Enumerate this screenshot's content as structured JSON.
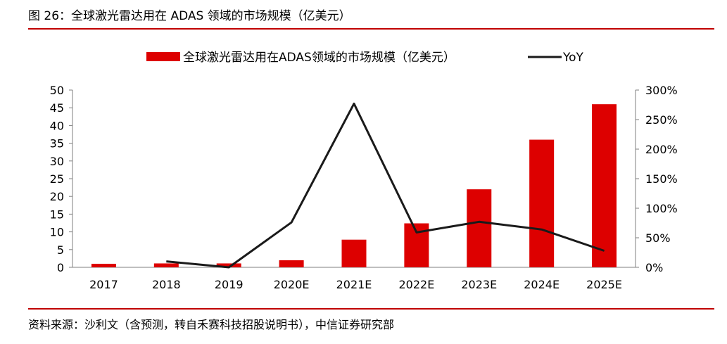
{
  "figure": {
    "title": "图 26：全球激光雷达用在 ADAS 领域的市场规模（亿美元）",
    "source": "资料来源：沙利文（含预测，转自禾赛科技招股说明书），中信证券研究部"
  },
  "colors": {
    "bar": "#dd0000",
    "line": "#1a1a1a",
    "rule": "#c00000",
    "axis": "#7f7f7f"
  },
  "chart_data": {
    "type": "bar",
    "categories": [
      "2017",
      "2018",
      "2019",
      "2020E",
      "2021E",
      "2022E",
      "2023E",
      "2024E",
      "2025E"
    ],
    "series": [
      {
        "name": "全球激光雷达用在ADAS领域的市场规模（亿美元）",
        "type": "bar",
        "axis": "left",
        "values": [
          1.0,
          1.1,
          1.1,
          2.0,
          7.8,
          12.4,
          22.0,
          36.0,
          46.0
        ]
      },
      {
        "name": "YoY",
        "type": "line",
        "axis": "right",
        "values": [
          null,
          10,
          0,
          76,
          277,
          59,
          77,
          64,
          28
        ]
      }
    ],
    "y_left": {
      "min": 0,
      "max": 50,
      "ticks": [
        0,
        5,
        10,
        15,
        20,
        25,
        30,
        35,
        40,
        45,
        50
      ]
    },
    "y_right": {
      "min": 0,
      "max": 300,
      "ticks": [
        "0%",
        "50%",
        "100%",
        "150%",
        "200%",
        "250%",
        "300%"
      ]
    },
    "legend": "top-center",
    "grid": false
  }
}
